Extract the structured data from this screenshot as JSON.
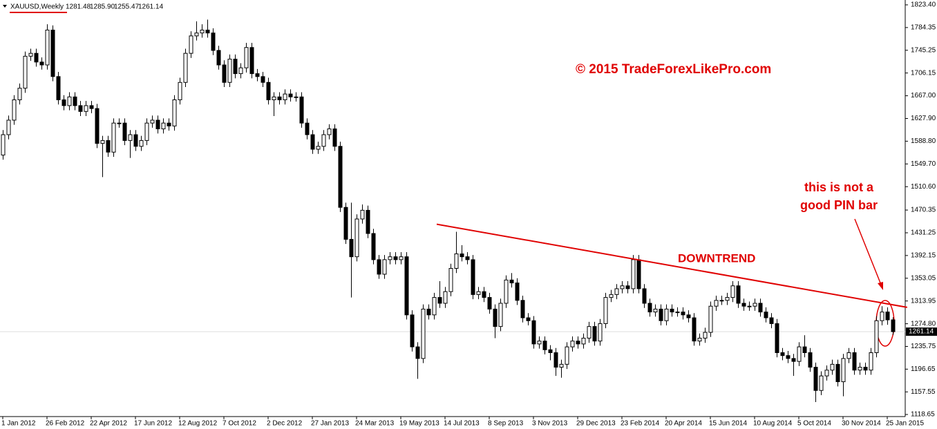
{
  "chart_data": {
    "type": "candlestick",
    "header": {
      "symbol": "XAUUSD,Weekly",
      "ohlc_labels": [
        "1281.48",
        "1285.90",
        "1255.47",
        "1261.14"
      ]
    },
    "last_price_label": "1261.14",
    "annotations": {
      "copyright": "© 2015 TradeForexLikePro.com",
      "trend": "DOWNTREND",
      "note": [
        "this is not a",
        "good PIN bar"
      ]
    },
    "bull_color": "#ffffff",
    "bear_color": "#000000",
    "line_color": "#000000",
    "annotation_color": "#e00000",
    "trendline": {
      "start": [
        78.5,
        1446
      ],
      "end": [
        163.6,
        1303
      ]
    },
    "ylim": [
      1118.65,
      1823.4
    ],
    "yticks": [
      {
        "value": 1823.4,
        "label": "1823.40"
      },
      {
        "value": 1784.35,
        "label": "1784.35"
      },
      {
        "value": 1745.25,
        "label": "1745.25"
      },
      {
        "value": 1706.15,
        "label": "1706.15"
      },
      {
        "value": 1667.0,
        "label": "1667.00"
      },
      {
        "value": 1627.9,
        "label": "1627.90"
      },
      {
        "value": 1588.8,
        "label": "1588.80"
      },
      {
        "value": 1549.7,
        "label": "1549.70"
      },
      {
        "value": 1510.6,
        "label": "1510.60"
      },
      {
        "value": 1470.35,
        "label": "1470.35"
      },
      {
        "value": 1431.25,
        "label": "1431.25"
      },
      {
        "value": 1392.15,
        "label": "1392.15"
      },
      {
        "value": 1353.05,
        "label": "1353.05"
      },
      {
        "value": 1313.95,
        "label": "1313.95"
      },
      {
        "value": 1274.8,
        "label": "1274.80"
      },
      {
        "value": 1235.75,
        "label": "1235.75"
      },
      {
        "value": 1196.65,
        "label": "1196.65"
      },
      {
        "value": 1157.55,
        "label": "1157.55"
      },
      {
        "value": 1118.65,
        "label": "1118.65"
      }
    ],
    "xticks": [
      {
        "value": 0,
        "label": "1 Jan 2012"
      },
      {
        "value": 8,
        "label": "26 Feb 2012"
      },
      {
        "value": 16,
        "label": "22 Apr 2012"
      },
      {
        "value": 24,
        "label": "17 Jun 2012"
      },
      {
        "value": 32,
        "label": "12 Aug 2012"
      },
      {
        "value": 40,
        "label": "7 Oct 2012"
      },
      {
        "value": 48,
        "label": "2 Dec 2012"
      },
      {
        "value": 56,
        "label": "27 Jan 2013"
      },
      {
        "value": 64,
        "label": "24 Mar 2013"
      },
      {
        "value": 72,
        "label": "19 May 2013"
      },
      {
        "value": 80,
        "label": "14 Jul 2013"
      },
      {
        "value": 88,
        "label": "8 Sep 2013"
      },
      {
        "value": 96,
        "label": "3 Nov 2013"
      },
      {
        "value": 104,
        "label": "29 Dec 2013"
      },
      {
        "value": 112,
        "label": "23 Feb 2014"
      },
      {
        "value": 120,
        "label": "20 Apr 2014"
      },
      {
        "value": 128,
        "label": "15 Jun 2014"
      },
      {
        "value": 136,
        "label": "10 Aug 2014"
      },
      {
        "value": 144,
        "label": "5 Oct 2014"
      },
      {
        "value": 152,
        "label": "30 Nov 2014"
      },
      {
        "value": 160,
        "label": "25 Jan 2015"
      }
    ],
    "candles": [
      [
        1565,
        1608,
        1557,
        1600
      ],
      [
        1600,
        1633,
        1592,
        1625
      ],
      [
        1625,
        1668,
        1617,
        1660
      ],
      [
        1660,
        1688,
        1652,
        1680
      ],
      [
        1680,
        1743,
        1672,
        1735
      ],
      [
        1735,
        1748,
        1727,
        1740
      ],
      [
        1740,
        1748,
        1717,
        1725
      ],
      [
        1725,
        1733,
        1712,
        1720
      ],
      [
        1720,
        1790,
        1712,
        1780
      ],
      [
        1780,
        1788,
        1692,
        1700
      ],
      [
        1700,
        1708,
        1652,
        1660
      ],
      [
        1660,
        1668,
        1642,
        1650
      ],
      [
        1650,
        1673,
        1642,
        1665
      ],
      [
        1665,
        1673,
        1642,
        1650
      ],
      [
        1650,
        1658,
        1632,
        1640
      ],
      [
        1640,
        1658,
        1632,
        1650
      ],
      [
        1650,
        1658,
        1637,
        1645
      ],
      [
        1645,
        1653,
        1577,
        1585
      ],
      [
        1585,
        1598,
        1527,
        1590
      ],
      [
        1590,
        1598,
        1562,
        1570
      ],
      [
        1570,
        1628,
        1562,
        1620
      ],
      [
        1620,
        1628,
        1612,
        1620
      ],
      [
        1620,
        1628,
        1582,
        1590
      ],
      [
        1590,
        1608,
        1560,
        1600
      ],
      [
        1600,
        1608,
        1572,
        1580
      ],
      [
        1580,
        1598,
        1572,
        1590
      ],
      [
        1590,
        1628,
        1582,
        1620
      ],
      [
        1620,
        1633,
        1612,
        1625
      ],
      [
        1625,
        1633,
        1602,
        1610
      ],
      [
        1610,
        1628,
        1602,
        1620
      ],
      [
        1620,
        1628,
        1607,
        1615
      ],
      [
        1615,
        1668,
        1607,
        1660
      ],
      [
        1660,
        1698,
        1652,
        1690
      ],
      [
        1690,
        1748,
        1682,
        1740
      ],
      [
        1740,
        1778,
        1732,
        1770
      ],
      [
        1770,
        1795,
        1762,
        1775
      ],
      [
        1775,
        1790,
        1767,
        1780
      ],
      [
        1780,
        1798,
        1767,
        1775
      ],
      [
        1775,
        1783,
        1737,
        1745
      ],
      [
        1745,
        1753,
        1712,
        1720
      ],
      [
        1720,
        1728,
        1682,
        1690
      ],
      [
        1690,
        1738,
        1682,
        1730
      ],
      [
        1730,
        1738,
        1697,
        1705
      ],
      [
        1705,
        1723,
        1697,
        1715
      ],
      [
        1715,
        1758,
        1707,
        1750
      ],
      [
        1750,
        1758,
        1697,
        1705
      ],
      [
        1705,
        1713,
        1692,
        1700
      ],
      [
        1700,
        1708,
        1682,
        1690
      ],
      [
        1690,
        1698,
        1652,
        1660
      ],
      [
        1660,
        1673,
        1632,
        1665
      ],
      [
        1665,
        1673,
        1652,
        1660
      ],
      [
        1660,
        1678,
        1652,
        1670
      ],
      [
        1670,
        1678,
        1657,
        1665
      ],
      [
        1665,
        1673,
        1657,
        1665
      ],
      [
        1665,
        1673,
        1612,
        1620
      ],
      [
        1620,
        1628,
        1592,
        1600
      ],
      [
        1600,
        1608,
        1567,
        1575
      ],
      [
        1575,
        1588,
        1567,
        1580
      ],
      [
        1580,
        1608,
        1572,
        1600
      ],
      [
        1600,
        1618,
        1592,
        1610
      ],
      [
        1610,
        1618,
        1572,
        1580
      ],
      [
        1580,
        1588,
        1467,
        1475
      ],
      [
        1475,
        1483,
        1412,
        1420
      ],
      [
        1420,
        1483,
        1320,
        1390
      ],
      [
        1390,
        1463,
        1382,
        1455
      ],
      [
        1455,
        1480,
        1447,
        1470
      ],
      [
        1470,
        1478,
        1422,
        1430
      ],
      [
        1430,
        1438,
        1377,
        1385
      ],
      [
        1385,
        1393,
        1352,
        1360
      ],
      [
        1360,
        1393,
        1352,
        1385
      ],
      [
        1385,
        1398,
        1377,
        1390
      ],
      [
        1390,
        1398,
        1377,
        1385
      ],
      [
        1385,
        1398,
        1377,
        1390
      ],
      [
        1390,
        1398,
        1282,
        1290
      ],
      [
        1290,
        1298,
        1227,
        1235
      ],
      [
        1235,
        1243,
        1180,
        1215
      ],
      [
        1215,
        1308,
        1207,
        1300
      ],
      [
        1300,
        1308,
        1282,
        1290
      ],
      [
        1290,
        1328,
        1282,
        1320
      ],
      [
        1320,
        1348,
        1302,
        1310
      ],
      [
        1310,
        1338,
        1302,
        1330
      ],
      [
        1330,
        1378,
        1322,
        1370
      ],
      [
        1370,
        1433,
        1362,
        1395
      ],
      [
        1395,
        1410,
        1382,
        1390
      ],
      [
        1390,
        1398,
        1377,
        1385
      ],
      [
        1385,
        1393,
        1317,
        1325
      ],
      [
        1325,
        1338,
        1317,
        1330
      ],
      [
        1330,
        1338,
        1312,
        1320
      ],
      [
        1320,
        1328,
        1292,
        1300
      ],
      [
        1300,
        1308,
        1250,
        1270
      ],
      [
        1270,
        1318,
        1262,
        1310
      ],
      [
        1310,
        1358,
        1302,
        1350
      ],
      [
        1350,
        1362,
        1337,
        1345
      ],
      [
        1345,
        1353,
        1307,
        1315
      ],
      [
        1315,
        1323,
        1277,
        1285
      ],
      [
        1285,
        1293,
        1272,
        1280
      ],
      [
        1280,
        1288,
        1232,
        1240
      ],
      [
        1240,
        1253,
        1232,
        1245
      ],
      [
        1245,
        1253,
        1222,
        1230
      ],
      [
        1230,
        1238,
        1212,
        1225
      ],
      [
        1225,
        1233,
        1185,
        1200
      ],
      [
        1200,
        1213,
        1182,
        1205
      ],
      [
        1205,
        1243,
        1197,
        1235
      ],
      [
        1235,
        1253,
        1227,
        1245
      ],
      [
        1245,
        1253,
        1232,
        1240
      ],
      [
        1240,
        1258,
        1232,
        1250
      ],
      [
        1250,
        1278,
        1242,
        1270
      ],
      [
        1270,
        1278,
        1237,
        1245
      ],
      [
        1245,
        1283,
        1237,
        1275
      ],
      [
        1275,
        1328,
        1267,
        1320
      ],
      [
        1320,
        1333,
        1312,
        1325
      ],
      [
        1325,
        1343,
        1317,
        1335
      ],
      [
        1335,
        1348,
        1327,
        1340
      ],
      [
        1340,
        1348,
        1327,
        1335
      ],
      [
        1335,
        1393,
        1327,
        1385
      ],
      [
        1385,
        1393,
        1327,
        1335
      ],
      [
        1335,
        1343,
        1302,
        1310
      ],
      [
        1310,
        1318,
        1287,
        1295
      ],
      [
        1295,
        1308,
        1287,
        1300
      ],
      [
        1300,
        1308,
        1272,
        1280
      ],
      [
        1280,
        1308,
        1272,
        1300
      ],
      [
        1300,
        1308,
        1287,
        1295
      ],
      [
        1295,
        1303,
        1287,
        1295
      ],
      [
        1295,
        1303,
        1282,
        1290
      ],
      [
        1290,
        1298,
        1277,
        1285
      ],
      [
        1285,
        1293,
        1237,
        1245
      ],
      [
        1245,
        1258,
        1237,
        1250
      ],
      [
        1250,
        1268,
        1242,
        1260
      ],
      [
        1260,
        1313,
        1252,
        1305
      ],
      [
        1305,
        1323,
        1297,
        1315
      ],
      [
        1315,
        1323,
        1307,
        1315
      ],
      [
        1315,
        1328,
        1307,
        1320
      ],
      [
        1320,
        1348,
        1312,
        1340
      ],
      [
        1340,
        1348,
        1302,
        1310
      ],
      [
        1310,
        1318,
        1297,
        1305
      ],
      [
        1305,
        1313,
        1297,
        1305
      ],
      [
        1305,
        1318,
        1297,
        1310
      ],
      [
        1310,
        1318,
        1287,
        1295
      ],
      [
        1295,
        1303,
        1277,
        1285
      ],
      [
        1285,
        1293,
        1267,
        1275
      ],
      [
        1275,
        1283,
        1217,
        1225
      ],
      [
        1225,
        1233,
        1212,
        1220
      ],
      [
        1220,
        1228,
        1207,
        1215
      ],
      [
        1215,
        1223,
        1185,
        1210
      ],
      [
        1210,
        1243,
        1202,
        1235
      ],
      [
        1235,
        1255,
        1217,
        1225
      ],
      [
        1225,
        1233,
        1192,
        1200
      ],
      [
        1200,
        1208,
        1140,
        1160
      ],
      [
        1160,
        1193,
        1152,
        1185
      ],
      [
        1185,
        1203,
        1177,
        1195
      ],
      [
        1195,
        1213,
        1187,
        1205
      ],
      [
        1205,
        1213,
        1167,
        1175
      ],
      [
        1175,
        1223,
        1150,
        1215
      ],
      [
        1215,
        1233,
        1207,
        1225
      ],
      [
        1225,
        1233,
        1187,
        1195
      ],
      [
        1195,
        1208,
        1187,
        1200
      ],
      [
        1200,
        1208,
        1187,
        1195
      ],
      [
        1195,
        1233,
        1187,
        1225
      ],
      [
        1225,
        1288,
        1217,
        1280
      ],
      [
        1280,
        1305,
        1272,
        1295
      ],
      [
        1295,
        1303,
        1273,
        1281.48
      ],
      [
        1281.48,
        1285.9,
        1255.47,
        1261.14
      ]
    ]
  }
}
